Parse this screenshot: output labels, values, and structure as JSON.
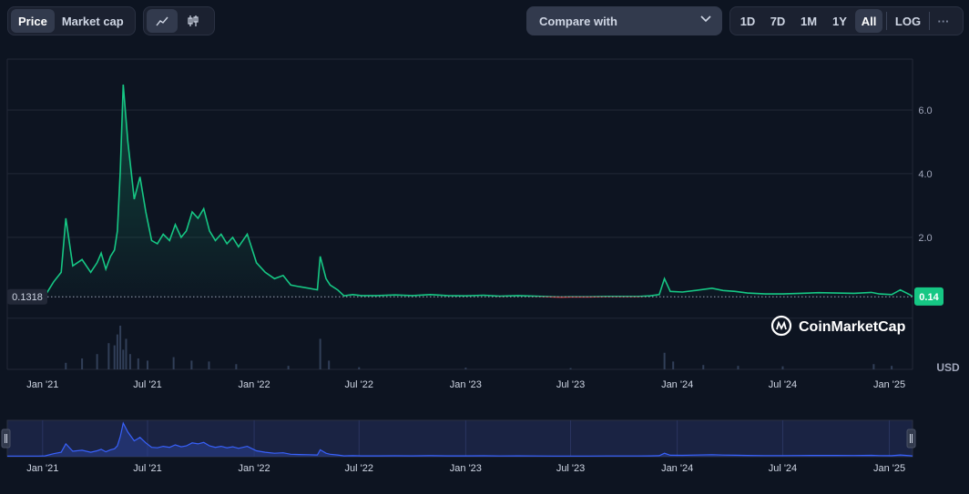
{
  "toolbar": {
    "metric_tabs": [
      {
        "label": "Price",
        "active": true
      },
      {
        "label": "Market cap",
        "active": false
      }
    ],
    "view_icons": [
      "line-chart-icon",
      "candlestick-icon"
    ],
    "compare_label": "Compare with",
    "ranges": [
      {
        "label": "1D",
        "active": false
      },
      {
        "label": "7D",
        "active": false
      },
      {
        "label": "1M",
        "active": false
      },
      {
        "label": "1Y",
        "active": false
      },
      {
        "label": "All",
        "active": true
      }
    ],
    "log_label": "LOG",
    "more_label": "···"
  },
  "chart_data": {
    "type": "line",
    "title": "",
    "currency_label": "USD",
    "y_ticks": [
      2.0,
      4.0,
      6.0
    ],
    "y_tick_labels": [
      "2.0",
      "4.0",
      "6.0"
    ],
    "ylim": [
      -2.15,
      7.6
    ],
    "baseline_label": "0.1318",
    "baseline_value": 0.1318,
    "current_label": "0.14",
    "current_value": 0.14,
    "x_tick_labels": [
      "Jan '21",
      "Jul '21",
      "Jan '22",
      "Jul '22",
      "Jan '23",
      "Jul '23",
      "Jan '24",
      "Jul '24",
      "Jan '25"
    ],
    "x_range": [
      "2020-11-01",
      "2025-02-10"
    ],
    "series": [
      {
        "x": [
          "2020-11-01",
          "2020-11-20",
          "2020-12-10",
          "2020-12-25",
          "2021-01-05",
          "2021-01-20",
          "2021-02-02",
          "2021-02-10",
          "2021-02-22",
          "2021-03-10",
          "2021-03-25",
          "2021-04-05",
          "2021-04-12",
          "2021-04-20",
          "2021-04-28",
          "2021-05-05",
          "2021-05-10",
          "2021-05-15",
          "2021-05-20",
          "2021-05-28",
          "2021-06-08",
          "2021-06-18",
          "2021-06-28",
          "2021-07-08",
          "2021-07-18",
          "2021-07-28",
          "2021-08-08",
          "2021-08-18",
          "2021-08-28",
          "2021-09-06",
          "2021-09-16",
          "2021-09-26",
          "2021-10-06",
          "2021-10-16",
          "2021-10-26",
          "2021-11-05",
          "2021-11-15",
          "2021-11-25",
          "2021-12-05",
          "2021-12-20",
          "2022-01-05",
          "2022-01-20",
          "2022-02-05",
          "2022-02-20",
          "2022-03-05",
          "2022-03-20",
          "2022-04-05",
          "2022-04-20",
          "2022-04-25",
          "2022-05-05",
          "2022-05-12",
          "2022-05-25",
          "2022-06-05",
          "2022-06-20",
          "2022-07-05",
          "2022-08-01",
          "2022-09-01",
          "2022-10-01",
          "2022-11-01",
          "2022-12-01",
          "2023-01-01",
          "2023-02-01",
          "2023-03-01",
          "2023-04-01",
          "2023-05-01",
          "2023-06-01",
          "2023-06-15",
          "2023-07-01",
          "2023-08-01",
          "2023-09-01",
          "2023-10-01",
          "2023-10-25",
          "2023-11-15",
          "2023-12-01",
          "2023-12-10",
          "2023-12-20",
          "2024-01-10",
          "2024-02-01",
          "2024-03-01",
          "2024-03-20",
          "2024-04-10",
          "2024-05-01",
          "2024-06-01",
          "2024-07-01",
          "2024-08-01",
          "2024-09-01",
          "2024-10-01",
          "2024-11-01",
          "2024-12-01",
          "2024-12-15",
          "2025-01-05",
          "2025-01-20",
          "2025-02-05",
          "2025-02-10"
        ],
        "y": [
          0.1318,
          0.1318,
          0.1318,
          0.1318,
          0.16,
          0.6,
          0.9,
          2.6,
          1.1,
          1.3,
          0.9,
          1.2,
          1.5,
          1.0,
          1.4,
          1.6,
          2.2,
          4.1,
          6.8,
          5.0,
          3.2,
          3.9,
          2.8,
          1.9,
          1.8,
          2.1,
          1.9,
          2.4,
          2.0,
          2.2,
          2.8,
          2.6,
          2.9,
          2.2,
          1.9,
          2.1,
          1.8,
          2.0,
          1.7,
          2.1,
          1.2,
          0.9,
          0.7,
          0.8,
          0.5,
          0.45,
          0.4,
          0.35,
          1.4,
          0.7,
          0.5,
          0.35,
          0.16,
          0.2,
          0.17,
          0.17,
          0.19,
          0.17,
          0.2,
          0.17,
          0.16,
          0.18,
          0.15,
          0.17,
          0.15,
          0.13,
          0.12,
          0.13,
          0.13,
          0.14,
          0.14,
          0.14,
          0.16,
          0.2,
          0.7,
          0.3,
          0.28,
          0.33,
          0.4,
          0.33,
          0.3,
          0.25,
          0.22,
          0.22,
          0.24,
          0.26,
          0.25,
          0.24,
          0.27,
          0.22,
          0.2,
          0.35,
          0.2,
          0.14
        ]
      }
    ],
    "volume": [
      {
        "x": "2021-02-10",
        "v": 0.15
      },
      {
        "x": "2021-03-10",
        "v": 0.25
      },
      {
        "x": "2021-04-05",
        "v": 0.35
      },
      {
        "x": "2021-04-25",
        "v": 0.6
      },
      {
        "x": "2021-05-05",
        "v": 0.55
      },
      {
        "x": "2021-05-10",
        "v": 0.8
      },
      {
        "x": "2021-05-15",
        "v": 1.0
      },
      {
        "x": "2021-05-20",
        "v": 0.45
      },
      {
        "x": "2021-05-25",
        "v": 0.7
      },
      {
        "x": "2021-06-01",
        "v": 0.35
      },
      {
        "x": "2021-06-15",
        "v": 0.25
      },
      {
        "x": "2021-07-01",
        "v": 0.2
      },
      {
        "x": "2021-08-15",
        "v": 0.28
      },
      {
        "x": "2021-09-15",
        "v": 0.2
      },
      {
        "x": "2021-10-15",
        "v": 0.18
      },
      {
        "x": "2021-12-01",
        "v": 0.12
      },
      {
        "x": "2022-03-01",
        "v": 0.08
      },
      {
        "x": "2022-04-25",
        "v": 0.7
      },
      {
        "x": "2022-05-10",
        "v": 0.2
      },
      {
        "x": "2022-07-01",
        "v": 0.05
      },
      {
        "x": "2023-01-01",
        "v": 0.04
      },
      {
        "x": "2023-07-01",
        "v": 0.03
      },
      {
        "x": "2023-12-10",
        "v": 0.38
      },
      {
        "x": "2023-12-25",
        "v": 0.18
      },
      {
        "x": "2024-02-15",
        "v": 0.1
      },
      {
        "x": "2024-04-15",
        "v": 0.08
      },
      {
        "x": "2024-07-01",
        "v": 0.07
      },
      {
        "x": "2024-12-05",
        "v": 0.12
      },
      {
        "x": "2025-01-05",
        "v": 0.08
      }
    ]
  },
  "watermark": {
    "text": "CoinMarketCap"
  },
  "colors": {
    "up": "#16c784",
    "down": "#ea3943",
    "grid": "#222837",
    "axis_text": "#a1a7bb",
    "navigator_line": "#3861fb"
  }
}
